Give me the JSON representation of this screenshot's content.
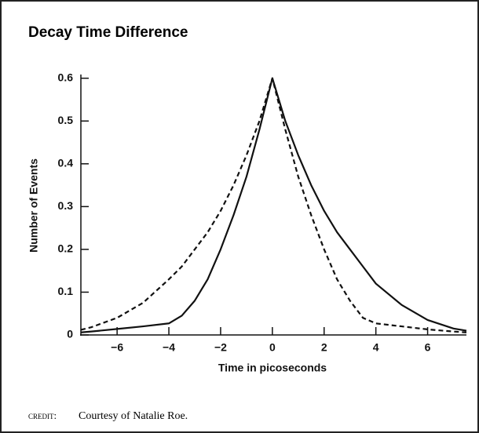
{
  "chart_data": {
    "type": "line",
    "title": "Decay Time Difference",
    "xlabel": "Time in picoseconds",
    "ylabel": "Number of Events",
    "credit_label": "CREDIT:",
    "credit": "Courtesy of Natalie Roe.",
    "x": [
      -7.4,
      -7,
      -6,
      -5,
      -4,
      -3.5,
      -3,
      -2.5,
      -2,
      -1.5,
      -1,
      -0.5,
      0,
      0.5,
      1,
      1.5,
      2,
      2.5,
      3,
      3.5,
      4,
      5,
      6,
      7,
      7.5
    ],
    "series": [
      {
        "color": "#111",
        "dash": false,
        "values": [
          0.006,
          0.008,
          0.014,
          0.02,
          0.027,
          0.045,
          0.08,
          0.13,
          0.2,
          0.28,
          0.37,
          0.48,
          0.6,
          0.5,
          0.42,
          0.35,
          0.29,
          0.24,
          0.2,
          0.16,
          0.12,
          0.07,
          0.035,
          0.015,
          0.01
        ]
      },
      {
        "color": "#111",
        "dash": true,
        "values": [
          0.012,
          0.018,
          0.04,
          0.075,
          0.13,
          0.16,
          0.2,
          0.24,
          0.29,
          0.35,
          0.42,
          0.5,
          0.6,
          0.48,
          0.37,
          0.28,
          0.2,
          0.13,
          0.08,
          0.04,
          0.027,
          0.02,
          0.013,
          0.008,
          0.006
        ]
      }
    ],
    "xlim": [
      -7.4,
      7.5
    ],
    "ylim": [
      0,
      0.605
    ],
    "xticks": [
      {
        "value": -6,
        "label": "−6"
      },
      {
        "value": -4,
        "label": "−4"
      },
      {
        "value": -2,
        "label": "−2"
      },
      0,
      2,
      4,
      6
    ],
    "yticks": [
      0,
      0.1,
      0.2,
      0.3,
      0.4,
      0.5,
      0.6
    ]
  }
}
